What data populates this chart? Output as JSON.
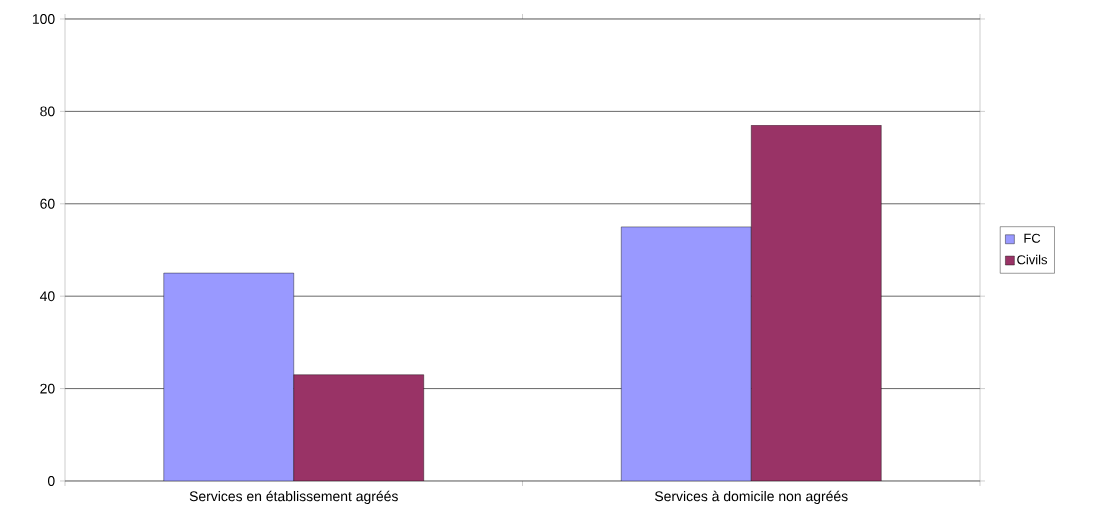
{
  "chart_data": {
    "type": "bar",
    "categories": [
      "Services en établissement agréés",
      "Services à domicile non agréés"
    ],
    "series": [
      {
        "name": "FC",
        "color": "#9999ff",
        "values": [
          45,
          55
        ]
      },
      {
        "name": "Civils",
        "color": "#993366",
        "values": [
          23,
          77
        ]
      }
    ],
    "ylim": [
      0,
      100
    ],
    "yticks": [
      0,
      20,
      40,
      60,
      80,
      100
    ],
    "grid": "y",
    "legend": "right"
  }
}
